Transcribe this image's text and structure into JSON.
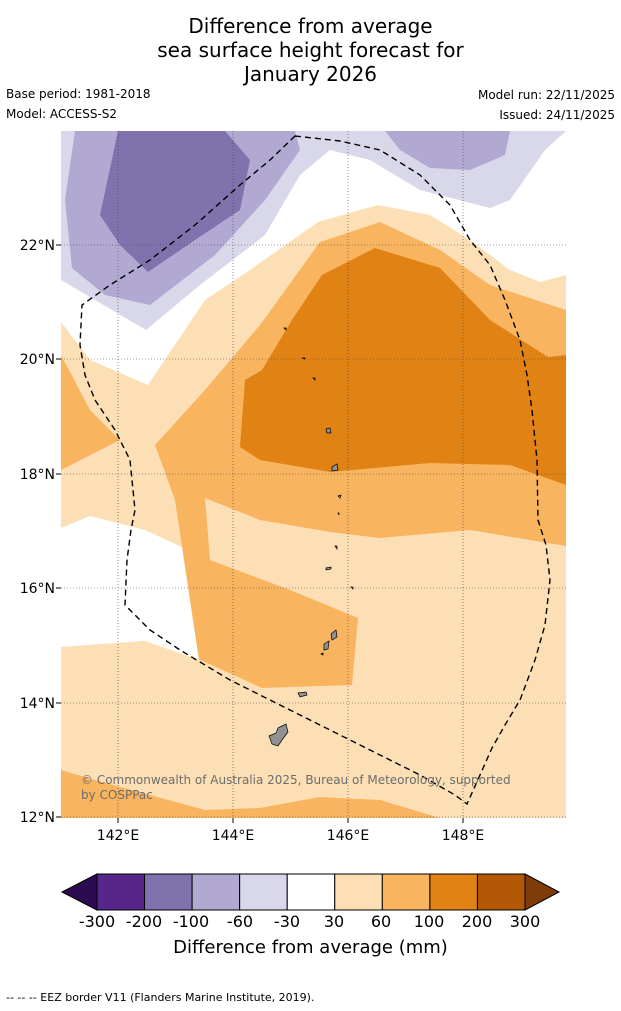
{
  "header": {
    "title_lines": [
      "Difference from average",
      "sea surface height forecast for",
      "January 2026"
    ],
    "base_period": "Base period: 1981-2018",
    "model": "Model: ACCESS-S2",
    "model_run": "Model run: 22/11/2025",
    "issued": "Issued: 24/11/2025"
  },
  "map": {
    "lat_labels": [
      "22°N",
      "20°N",
      "18°N",
      "16°N",
      "14°N",
      "12°N"
    ],
    "lon_labels": [
      "142°E",
      "144°E",
      "146°E",
      "148°E"
    ],
    "copyright_line1": "© Commonwealth of Australia 2025, Bureau of Meteorology, supported",
    "copyright_line2": "by COSPPac"
  },
  "colorbar": {
    "title": "Difference from average (mm)",
    "tick_labels": [
      "-300",
      "-200",
      "-100",
      "-60",
      "-30",
      "30",
      "60",
      "100",
      "200",
      "300"
    ],
    "colors": [
      "#2d0b53",
      "#56268a",
      "#7f72ad",
      "#b1a9d2",
      "#d9d8ea",
      "#ffffff",
      "#fddfb5",
      "#f9b45f",
      "#e08214",
      "#b35806",
      "#7f3b08"
    ]
  },
  "footer": {
    "legend": "--  --  -- EEZ border V11 (Flanders Marine Institute, 2019)."
  }
}
